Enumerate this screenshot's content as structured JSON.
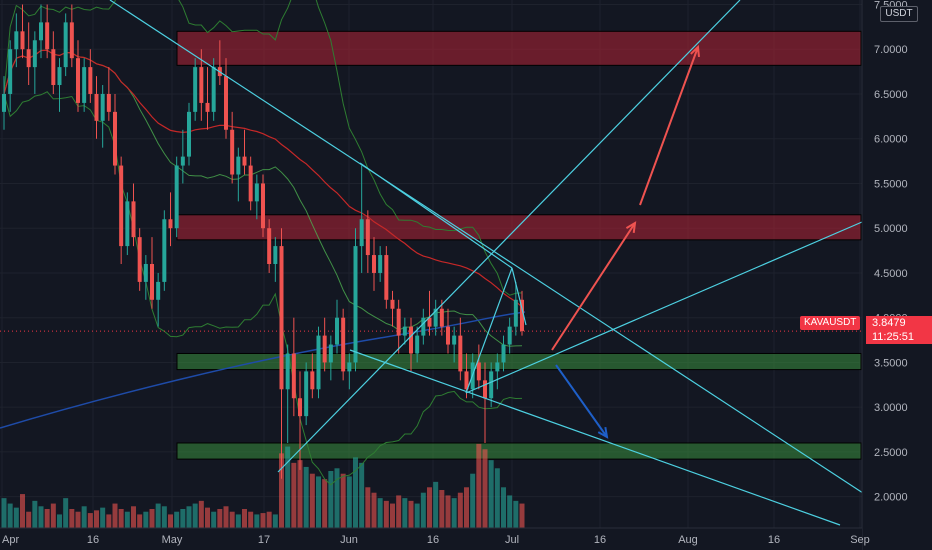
{
  "chart_data": {
    "type": "candlestick",
    "symbol": "KAVAUSDT",
    "quote_unit": "USDT",
    "last_price": "3.8479",
    "countdown": "11:25:51",
    "y_ticks": [
      "2.0000",
      "2.5000",
      "3.0000",
      "3.5000",
      "4.0000",
      "4.5000",
      "5.0000",
      "5.5000",
      "6.0000",
      "6.5000",
      "7.0000",
      "7.5000"
    ],
    "x_ticks": [
      "Apr",
      "16",
      "May",
      "17",
      "Jun",
      "16",
      "Jul",
      "16",
      "Aug",
      "16",
      "Sep"
    ],
    "ylim": [
      1.65,
      7.55
    ],
    "zones": [
      {
        "kind": "resistance",
        "low": 6.82,
        "high": 7.2
      },
      {
        "kind": "resistance",
        "low": 4.87,
        "high": 5.15
      },
      {
        "kind": "support",
        "low": 3.42,
        "high": 3.6
      },
      {
        "kind": "support",
        "low": 2.42,
        "high": 2.6
      }
    ],
    "candles_note": "daily candles from late March to early July (estimated)",
    "candles": [
      [
        6.3,
        6.7,
        6.1,
        6.5
      ],
      [
        6.5,
        7.1,
        6.3,
        7.0
      ],
      [
        7.0,
        7.4,
        6.8,
        7.2
      ],
      [
        7.2,
        7.5,
        6.9,
        7.0
      ],
      [
        7.0,
        7.3,
        6.6,
        6.8
      ],
      [
        6.8,
        7.2,
        6.5,
        7.1
      ],
      [
        7.1,
        7.5,
        6.9,
        7.3
      ],
      [
        7.3,
        7.5,
        6.9,
        7.0
      ],
      [
        7.0,
        7.2,
        6.5,
        6.6
      ],
      [
        6.6,
        6.9,
        6.3,
        6.8
      ],
      [
        6.8,
        7.4,
        6.7,
        7.3
      ],
      [
        7.3,
        7.5,
        6.8,
        6.9
      ],
      [
        6.9,
        7.1,
        6.3,
        6.4
      ],
      [
        6.4,
        6.9,
        6.3,
        6.8
      ],
      [
        6.8,
        7.0,
        6.4,
        6.5
      ],
      [
        6.5,
        6.7,
        6.0,
        6.2
      ],
      [
        6.2,
        6.6,
        5.9,
        6.5
      ],
      [
        6.5,
        6.8,
        6.2,
        6.3
      ],
      [
        6.3,
        6.5,
        5.6,
        5.7
      ],
      [
        5.7,
        5.8,
        4.6,
        4.8
      ],
      [
        4.8,
        5.4,
        4.7,
        5.3
      ],
      [
        5.3,
        5.5,
        4.8,
        4.9
      ],
      [
        4.9,
        5.0,
        4.3,
        4.4
      ],
      [
        4.4,
        4.7,
        4.2,
        4.6
      ],
      [
        4.6,
        4.9,
        4.1,
        4.2
      ],
      [
        4.2,
        4.5,
        3.9,
        4.4
      ],
      [
        4.4,
        5.2,
        4.3,
        5.1
      ],
      [
        5.1,
        5.4,
        4.8,
        5.0
      ],
      [
        5.0,
        5.8,
        4.9,
        5.7
      ],
      [
        5.7,
        6.1,
        5.5,
        5.8
      ],
      [
        5.8,
        6.4,
        5.7,
        6.3
      ],
      [
        6.3,
        6.9,
        6.2,
        6.8
      ],
      [
        6.8,
        7.0,
        6.2,
        6.4
      ],
      [
        6.4,
        6.8,
        6.1,
        6.3
      ],
      [
        6.3,
        6.9,
        6.2,
        6.8
      ],
      [
        6.8,
        7.1,
        6.6,
        6.7
      ],
      [
        6.7,
        6.9,
        6.0,
        6.1
      ],
      [
        6.1,
        6.3,
        5.5,
        5.6
      ],
      [
        5.6,
        5.9,
        5.3,
        5.8
      ],
      [
        5.8,
        6.1,
        5.6,
        5.7
      ],
      [
        5.7,
        5.8,
        5.2,
        5.3
      ],
      [
        5.3,
        5.6,
        5.1,
        5.5
      ],
      [
        5.5,
        5.6,
        4.9,
        5.0
      ],
      [
        5.0,
        5.1,
        4.5,
        4.6
      ],
      [
        4.6,
        4.9,
        4.4,
        4.8
      ],
      [
        4.8,
        5.0,
        2.2,
        3.2
      ],
      [
        3.2,
        3.7,
        2.6,
        3.6
      ],
      [
        3.6,
        4.0,
        2.9,
        3.1
      ],
      [
        3.1,
        3.4,
        2.3,
        2.9
      ],
      [
        2.9,
        3.5,
        2.8,
        3.4
      ],
      [
        3.4,
        3.6,
        3.1,
        3.2
      ],
      [
        3.2,
        3.9,
        3.1,
        3.8
      ],
      [
        3.8,
        4.0,
        3.4,
        3.5
      ],
      [
        3.5,
        3.8,
        3.3,
        3.7
      ],
      [
        3.7,
        4.2,
        3.6,
        4.0
      ],
      [
        4.0,
        4.1,
        3.3,
        3.4
      ],
      [
        3.4,
        3.6,
        3.2,
        3.5
      ],
      [
        3.5,
        5.0,
        3.4,
        4.8
      ],
      [
        4.8,
        5.7,
        4.5,
        5.1
      ],
      [
        5.1,
        5.2,
        4.5,
        4.7
      ],
      [
        4.7,
        4.9,
        4.3,
        4.5
      ],
      [
        4.5,
        4.8,
        4.4,
        4.7
      ],
      [
        4.7,
        4.8,
        4.1,
        4.2
      ],
      [
        4.2,
        4.3,
        3.9,
        4.1
      ],
      [
        4.1,
        4.2,
        3.6,
        3.8
      ],
      [
        3.8,
        4.0,
        3.7,
        3.9
      ],
      [
        3.9,
        4.0,
        3.4,
        3.6
      ],
      [
        3.6,
        3.9,
        3.5,
        3.8
      ],
      [
        3.8,
        4.1,
        3.7,
        4.0
      ],
      [
        4.0,
        4.3,
        3.8,
        3.9
      ],
      [
        3.9,
        4.2,
        3.8,
        4.1
      ],
      [
        4.1,
        4.2,
        3.8,
        3.9
      ],
      [
        3.9,
        4.1,
        3.6,
        3.7
      ],
      [
        3.7,
        3.9,
        3.5,
        3.8
      ],
      [
        3.8,
        4.0,
        3.3,
        3.4
      ],
      [
        3.4,
        3.6,
        3.1,
        3.2
      ],
      [
        3.2,
        3.6,
        3.1,
        3.5
      ],
      [
        3.5,
        3.7,
        3.2,
        3.3
      ],
      [
        3.3,
        3.5,
        2.6,
        3.1
      ],
      [
        3.1,
        3.5,
        3.0,
        3.4
      ],
      [
        3.4,
        3.6,
        3.2,
        3.5
      ],
      [
        3.5,
        3.8,
        3.4,
        3.7
      ],
      [
        3.7,
        4.0,
        3.6,
        3.9
      ],
      [
        3.9,
        4.4,
        3.8,
        4.2
      ],
      [
        4.2,
        4.3,
        3.8,
        3.85
      ]
    ],
    "volume": [
      22,
      18,
      15,
      25,
      12,
      20,
      16,
      14,
      18,
      10,
      22,
      14,
      12,
      16,
      11,
      13,
      15,
      10,
      18,
      14,
      12,
      16,
      10,
      12,
      14,
      18,
      16,
      10,
      12,
      14,
      16,
      18,
      20,
      15,
      12,
      14,
      16,
      12,
      10,
      14,
      12,
      10,
      11,
      12,
      10,
      55,
      60,
      48,
      50,
      45,
      40,
      38,
      36,
      42,
      44,
      40,
      38,
      52,
      48,
      30,
      26,
      22,
      20,
      18,
      24,
      22,
      20,
      18,
      26,
      30,
      34,
      28,
      24,
      22,
      26,
      30,
      40,
      62,
      58,
      50,
      44,
      30,
      24,
      20,
      18
    ]
  }
}
